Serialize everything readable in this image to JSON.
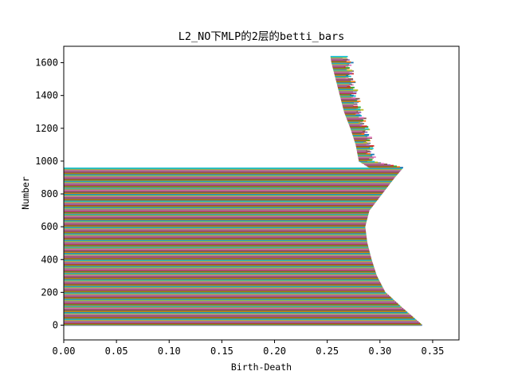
{
  "chart_data": {
    "type": "bar",
    "orientation": "horizontal",
    "title": "L2_NO下MLP的2层的betti_bars",
    "xlabel": "Birth-Death",
    "ylabel": "Number",
    "xlim": [
      0.0,
      0.375
    ],
    "ylim": [
      -90,
      1700
    ],
    "x_ticks": [
      "0.00",
      "0.05",
      "0.10",
      "0.15",
      "0.20",
      "0.25",
      "0.30",
      "0.35"
    ],
    "y_ticks": [
      "0",
      "200",
      "400",
      "600",
      "800",
      "1000",
      "1200",
      "1400",
      "1600"
    ],
    "grid": false,
    "legend": "none",
    "colors": [
      "#1f77b4",
      "#ff7f0e",
      "#2ca02c",
      "#d62728",
      "#9467bd",
      "#8c564b",
      "#e377c2",
      "#7f7f7f",
      "#bcbd22",
      "#17becf"
    ],
    "bars_summary": {
      "count": 1640,
      "birth_curve": [
        [
          0,
          0.226
        ],
        [
          100,
          0.242
        ],
        [
          200,
          0.254
        ],
        [
          300,
          0.262
        ],
        [
          400,
          0.268
        ],
        [
          500,
          0.272
        ],
        [
          600,
          0.276
        ],
        [
          700,
          0.28
        ],
        [
          800,
          0.284
        ],
        [
          900,
          0.288
        ],
        [
          960,
          0.29
        ],
        [
          1000,
          0.28
        ],
        [
          1100,
          0.277
        ],
        [
          1200,
          0.272
        ],
        [
          1300,
          0.266
        ],
        [
          1400,
          0.262
        ],
        [
          1500,
          0.258
        ],
        [
          1600,
          0.254
        ],
        [
          1640,
          0.253
        ]
      ],
      "death_curve": [
        [
          0,
          0.34
        ],
        [
          100,
          0.322
        ],
        [
          200,
          0.305
        ],
        [
          300,
          0.297
        ],
        [
          400,
          0.292
        ],
        [
          500,
          0.288
        ],
        [
          600,
          0.286
        ],
        [
          700,
          0.29
        ],
        [
          800,
          0.302
        ],
        [
          900,
          0.314
        ],
        [
          960,
          0.322
        ],
        [
          1000,
          0.292
        ],
        [
          1100,
          0.29
        ],
        [
          1200,
          0.286
        ],
        [
          1300,
          0.28
        ],
        [
          1400,
          0.276
        ],
        [
          1500,
          0.272
        ],
        [
          1600,
          0.27
        ],
        [
          1640,
          0.268
        ]
      ],
      "bars_start_at_zero_below": 960
    }
  }
}
